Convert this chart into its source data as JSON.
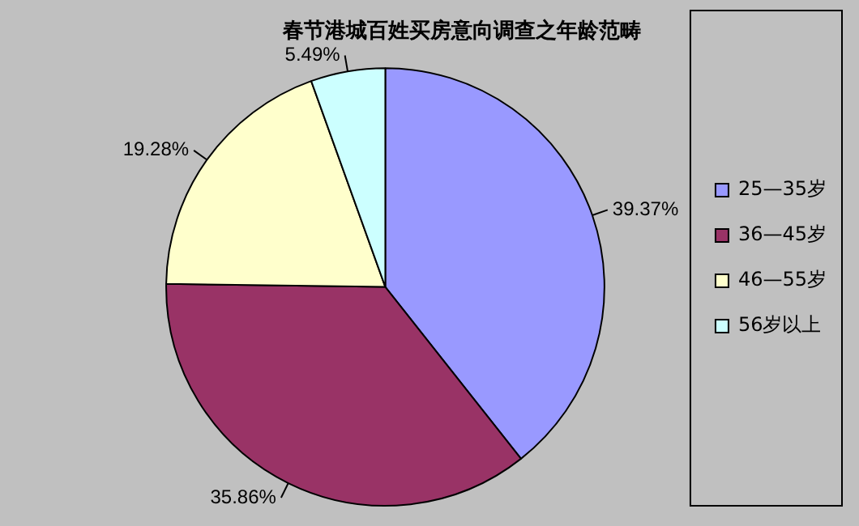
{
  "chart_data": {
    "type": "pie",
    "title": "春节港城百姓买房意向调查之年龄范畴",
    "categories": [
      "25—35岁",
      "36—45岁",
      "46—55岁",
      "56岁以上"
    ],
    "values": [
      39.37,
      35.86,
      19.28,
      5.49
    ],
    "value_labels": [
      "39.37%",
      "35.86%",
      "19.28%",
      "5.49%"
    ],
    "colors": [
      "#9999ff",
      "#993366",
      "#ffffcc",
      "#ccffff"
    ],
    "legend": "right"
  }
}
